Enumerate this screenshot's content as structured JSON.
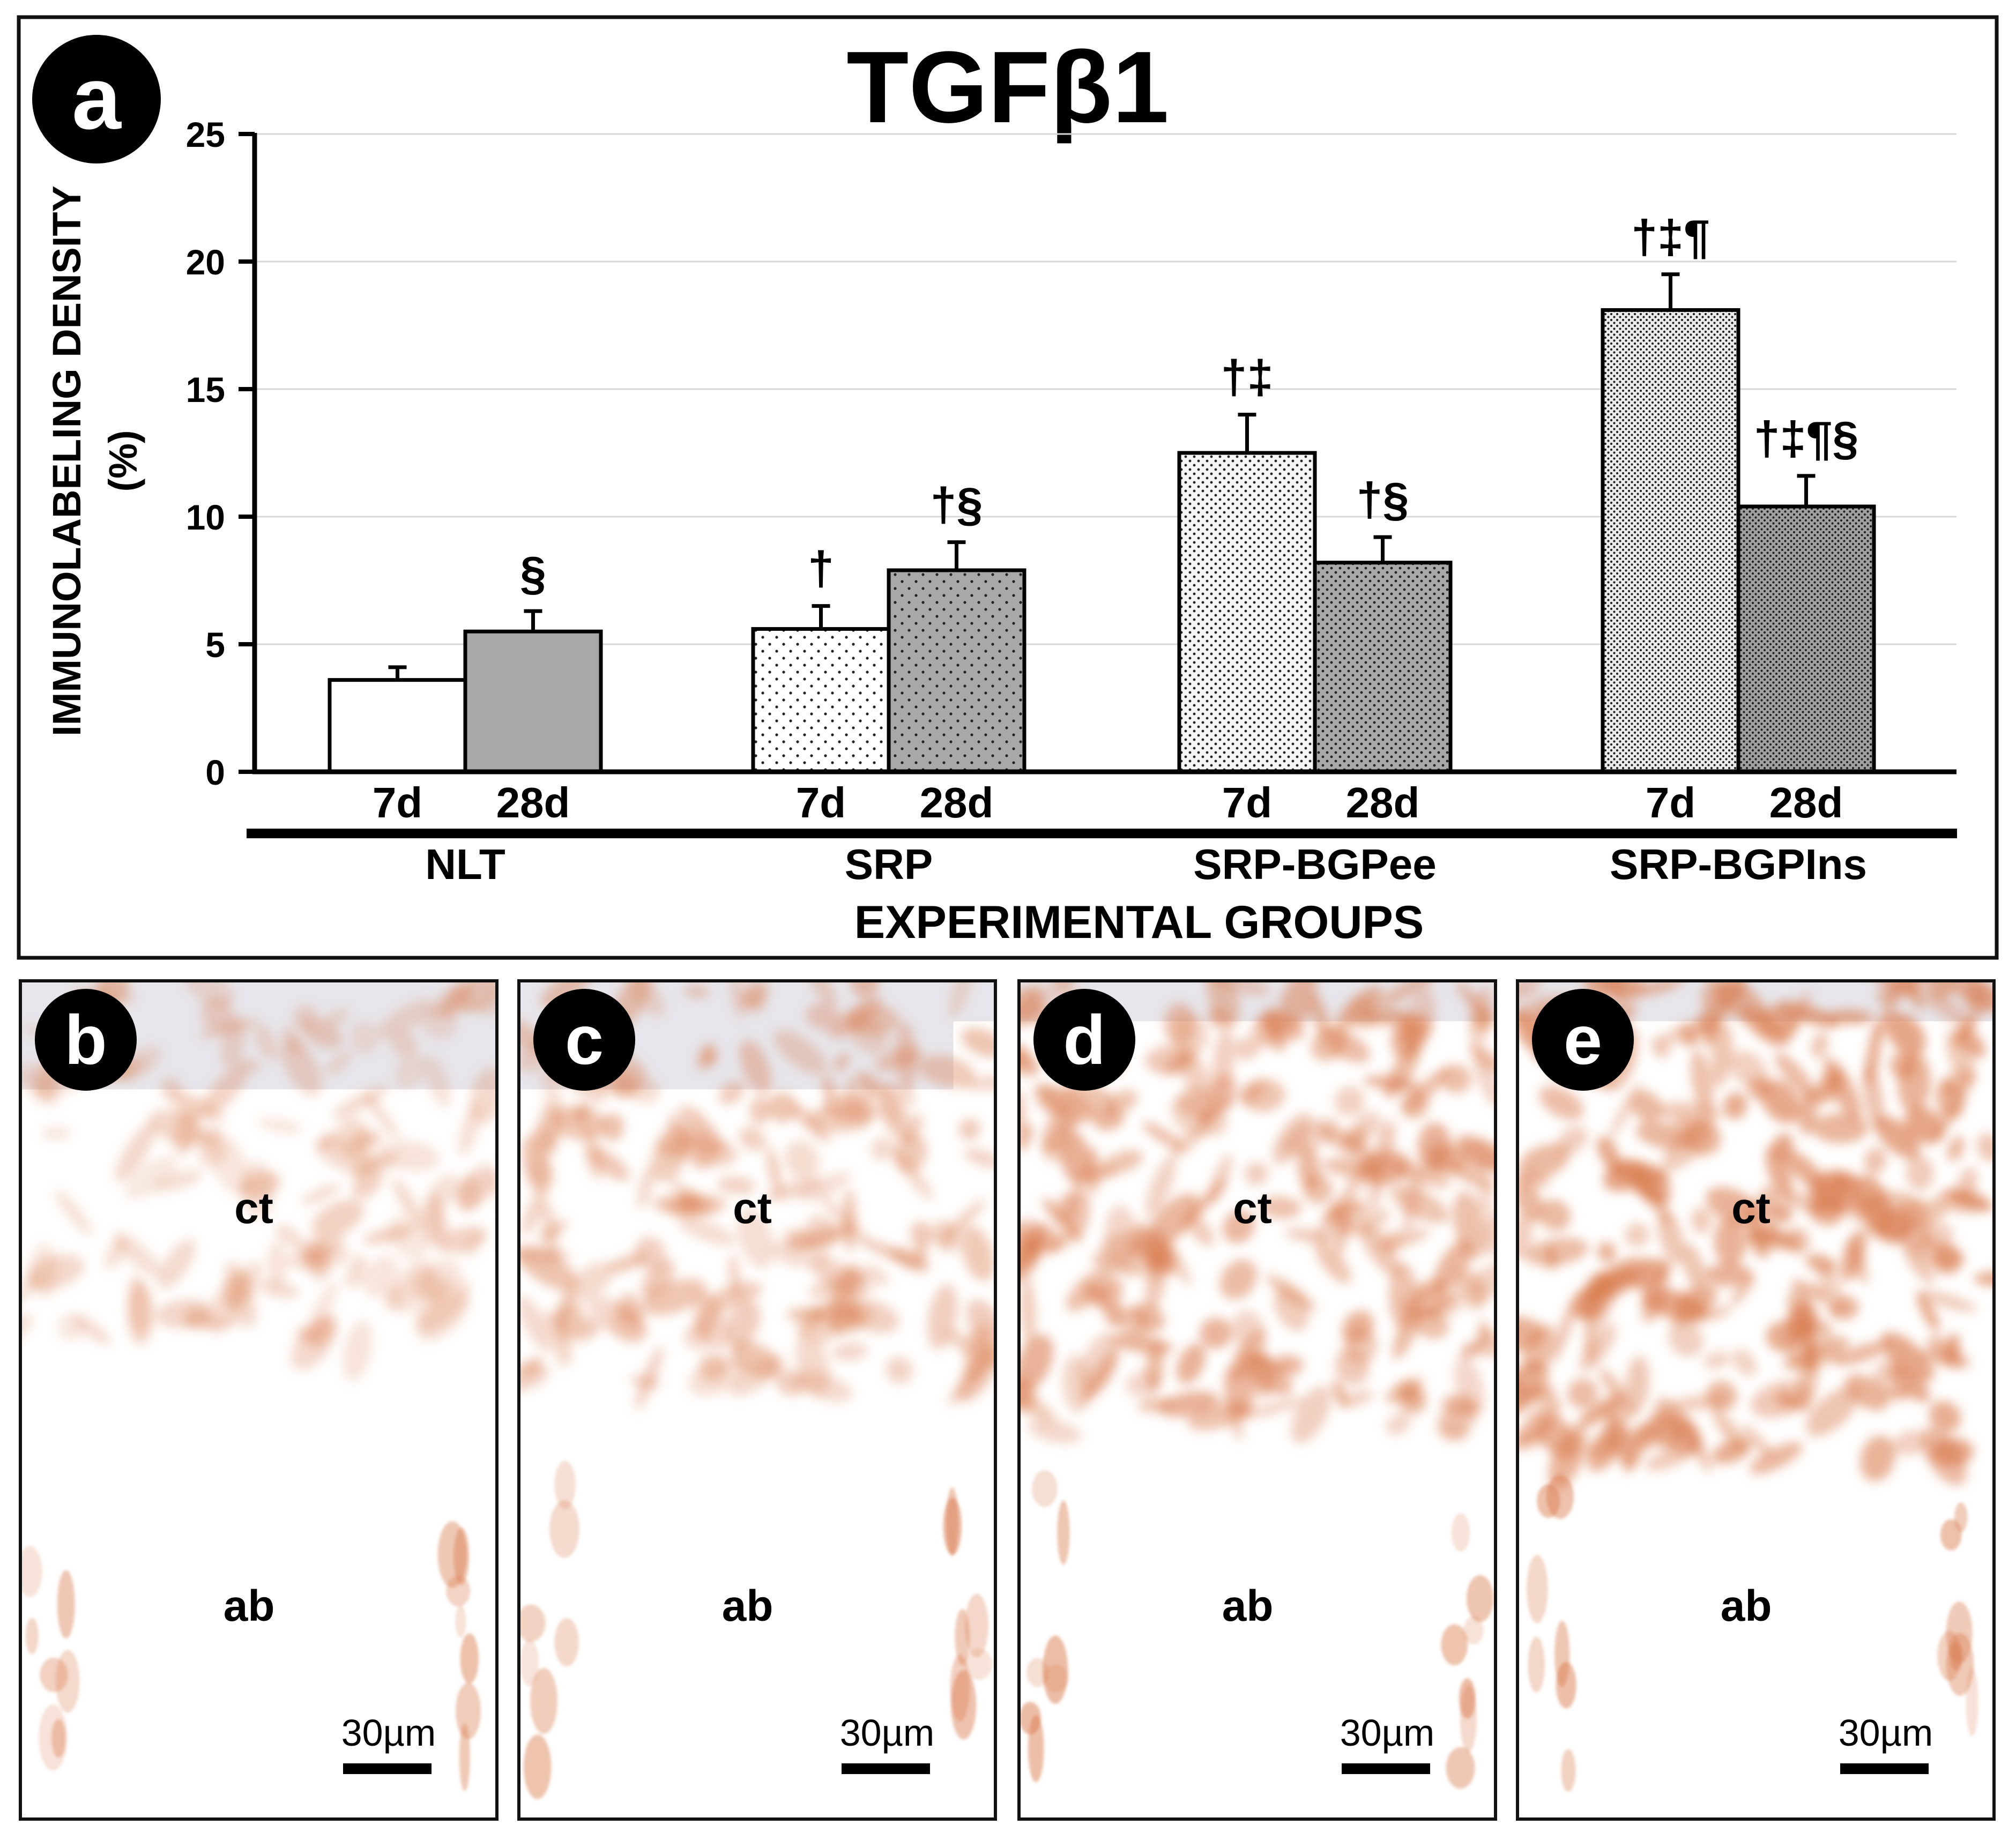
{
  "panel_a": {
    "label": "a",
    "title": "TGFβ1",
    "ylabel_line1": "IMMUNOLABELING DENSITY",
    "ylabel_line2": "(%)",
    "xlabel": "EXPERIMENTAL GROUPS"
  },
  "chart_data": {
    "type": "bar",
    "title": "TGFβ1",
    "xlabel": "EXPERIMENTAL GROUPS",
    "ylabel": "IMMUNOLABELING DENSITY (%)",
    "ylim": [
      0,
      25
    ],
    "yticks": [
      "0",
      "5",
      "10",
      "15",
      "20",
      "25"
    ],
    "grid": true,
    "groups": [
      {
        "name": "NLT",
        "bars": [
          {
            "label": "7d",
            "value": 3.6,
            "error": 0.5,
            "annotation": "",
            "fill": "white"
          },
          {
            "label": "28d",
            "value": 5.5,
            "error": 0.8,
            "annotation": "§",
            "fill": "gray"
          }
        ]
      },
      {
        "name": "SRP",
        "bars": [
          {
            "label": "7d",
            "value": 5.6,
            "error": 0.9,
            "annotation": "†",
            "fill": "sparse-dots-light"
          },
          {
            "label": "28d",
            "value": 7.9,
            "error": 1.1,
            "annotation": "†§",
            "fill": "sparse-dots-gray"
          }
        ]
      },
      {
        "name": "SRP-BGPee",
        "bars": [
          {
            "label": "7d",
            "value": 12.5,
            "error": 1.5,
            "annotation": "†‡",
            "fill": "medium-dots-light"
          },
          {
            "label": "28d",
            "value": 8.2,
            "error": 1.0,
            "annotation": "†§",
            "fill": "medium-dots-gray"
          }
        ]
      },
      {
        "name": "SRP-BGPIns",
        "bars": [
          {
            "label": "7d",
            "value": 18.1,
            "error": 1.4,
            "annotation": "†‡¶",
            "fill": "dense-dots-light"
          },
          {
            "label": "28d",
            "value": 10.4,
            "error": 1.2,
            "annotation": "†‡¶§",
            "fill": "dense-dots-gray"
          }
        ]
      }
    ]
  },
  "panels": [
    {
      "label": "b",
      "top_label": "ct",
      "bottom_label": "ab",
      "scale": "30µm",
      "intensity": 0.35
    },
    {
      "label": "c",
      "top_label": "ct",
      "bottom_label": "ab",
      "scale": "30µm",
      "intensity": 0.55
    },
    {
      "label": "d",
      "top_label": "ct",
      "bottom_label": "ab",
      "scale": "30µm",
      "intensity": 0.8
    },
    {
      "label": "e",
      "top_label": "ct",
      "bottom_label": "ab",
      "scale": "30µm",
      "intensity": 0.95
    }
  ],
  "colors": {
    "bar_gray": "#a8a8a8",
    "stain": "#d97a4c",
    "tissue_bg": "#e7e6ec"
  }
}
